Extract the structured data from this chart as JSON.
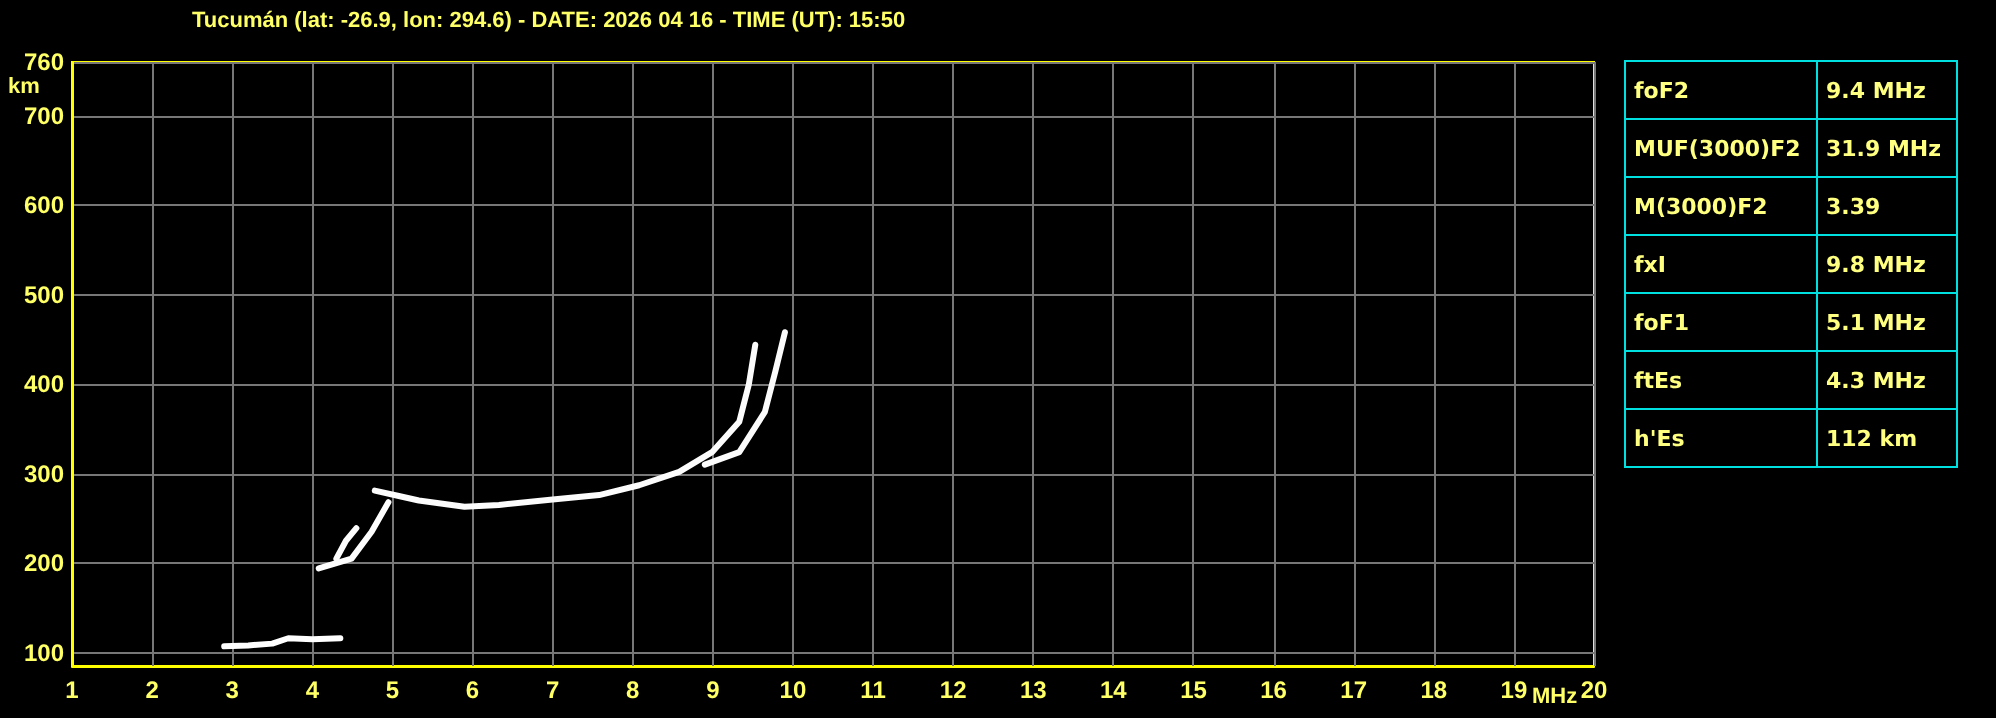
{
  "chart_data": [
    {
      "type": "line",
      "title": "Tucumán (lat: -26.9, lon: 294.6) - DATE: 2026 04 16 - TIME (UT): 15:50",
      "xlabel": "MHz",
      "ylabel": "km",
      "xlim": [
        1,
        20
      ],
      "xticks": [
        1,
        2,
        3,
        4,
        5,
        6,
        7,
        8,
        9,
        10,
        11,
        12,
        13,
        14,
        15,
        16,
        17,
        18,
        19,
        20
      ],
      "ylim": [
        85,
        760
      ],
      "yticks": [
        100,
        200,
        300,
        400,
        500,
        600,
        700,
        760
      ],
      "grid": true,
      "marker": "none",
      "line_style": "solid",
      "series": [
        {
          "color": "#ffffff",
          "x": [
            2.9,
            3.2,
            3.5,
            3.7,
            4.0,
            4.35
          ],
          "values": [
            107,
            108,
            110,
            116,
            115,
            116
          ]
        },
        {
          "color": "#fefefe",
          "x": [
            4.08,
            4.3,
            4.49,
            4.74,
            4.95
          ],
          "values": [
            194,
            200,
            205,
            235,
            268
          ]
        },
        {
          "color": "#fdfdfd",
          "x": [
            4.3,
            4.42,
            4.55
          ],
          "values": [
            205,
            225,
            239
          ]
        },
        {
          "color": "#fcfcfc",
          "x": [
            4.78,
            5.08,
            5.33,
            5.9,
            6.33,
            7.0,
            7.58,
            8.08,
            8.58,
            8.99,
            9.33,
            9.45,
            9.53
          ],
          "values": [
            281,
            275,
            270,
            263,
            265,
            271,
            276,
            287,
            302,
            324,
            358,
            400,
            444
          ]
        },
        {
          "color": "#fbfbfb",
          "x": [
            8.9,
            9.33,
            9.65,
            9.78,
            9.9
          ],
          "values": [
            310,
            324,
            369,
            414,
            458
          ]
        }
      ]
    },
    {
      "type": "other",
      "annotations": [
        "foF2",
        "9.4 MHz",
        "MUF(3000)F2",
        "31.9 MHz",
        "M(3000)F2",
        "3.39",
        "fxI",
        "9.8 MHz",
        "foF1",
        "5.1 MHz",
        "ftEs",
        "4.3 MHz",
        "h'Es",
        "112 km"
      ]
    }
  ]
}
